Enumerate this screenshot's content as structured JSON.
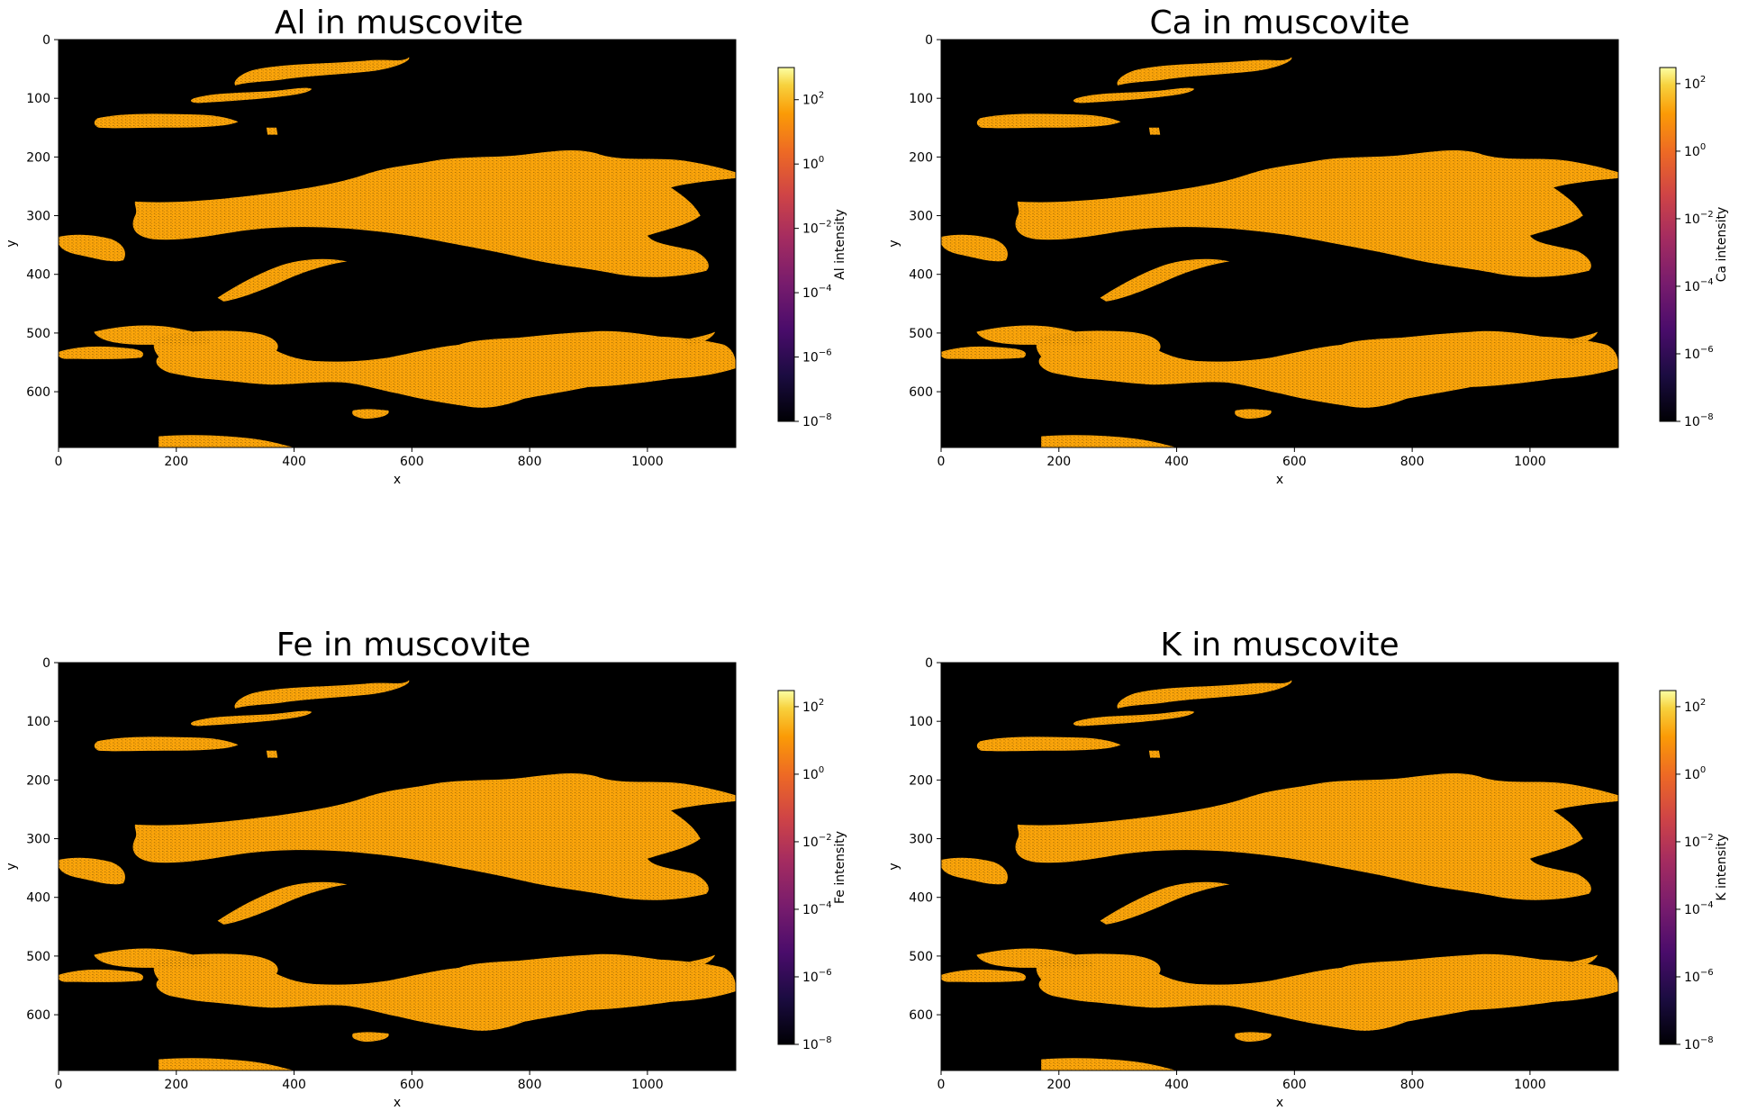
{
  "chart_data": [
    {
      "type": "heatmap",
      "title": "Al in muscovite",
      "xlabel": "x",
      "ylabel": "y",
      "xlim": [
        0,
        1150
      ],
      "ylim": [
        695,
        0
      ],
      "xticks": [
        "0",
        "200",
        "400",
        "600",
        "800",
        "1000"
      ],
      "yticks": [
        "0",
        "100",
        "200",
        "300",
        "400",
        "500",
        "600"
      ],
      "colorbar": {
        "label": "Al intensity",
        "scale": "log",
        "range": [
          1e-08,
          1000
        ],
        "ticks": [
          "10",
          "10",
          "10",
          "10",
          "10",
          "10"
        ],
        "exponents": [
          "−8",
          "−6",
          "−4",
          "−2",
          "0",
          "2"
        ]
      },
      "colormap": "inferno",
      "background_color": "#000000",
      "mineral_color": "#fca50a"
    },
    {
      "type": "heatmap",
      "title": "Ca in muscovite",
      "xlabel": "x",
      "ylabel": "y",
      "xlim": [
        0,
        1150
      ],
      "ylim": [
        695,
        0
      ],
      "xticks": [
        "0",
        "200",
        "400",
        "600",
        "800",
        "1000"
      ],
      "yticks": [
        "0",
        "100",
        "200",
        "300",
        "400",
        "500",
        "600"
      ],
      "colorbar": {
        "label": "Ca intensity",
        "scale": "log",
        "range": [
          1e-08,
          300
        ],
        "ticks": [
          "10",
          "10",
          "10",
          "10",
          "10",
          "10"
        ],
        "exponents": [
          "−8",
          "−6",
          "−4",
          "−2",
          "0",
          "2"
        ]
      },
      "colormap": "inferno",
      "background_color": "#000000",
      "mineral_color": "#fca50a"
    },
    {
      "type": "heatmap",
      "title": "Fe in muscovite",
      "xlabel": "x",
      "ylabel": "y",
      "xlim": [
        0,
        1150
      ],
      "ylim": [
        695,
        0
      ],
      "xticks": [
        "0",
        "200",
        "400",
        "600",
        "800",
        "1000"
      ],
      "yticks": [
        "0",
        "100",
        "200",
        "300",
        "400",
        "500",
        "600"
      ],
      "colorbar": {
        "label": "Fe intensity",
        "scale": "log",
        "range": [
          1e-08,
          300
        ],
        "ticks": [
          "10",
          "10",
          "10",
          "10",
          "10",
          "10"
        ],
        "exponents": [
          "−8",
          "−6",
          "−4",
          "−2",
          "0",
          "2"
        ]
      },
      "colormap": "inferno",
      "background_color": "#000000",
      "mineral_color": "#fca50a"
    },
    {
      "type": "heatmap",
      "title": "K in muscovite",
      "xlabel": "x",
      "ylabel": "y",
      "xlim": [
        0,
        1150
      ],
      "ylim": [
        695,
        0
      ],
      "xticks": [
        "0",
        "200",
        "400",
        "600",
        "800",
        "1000"
      ],
      "yticks": [
        "0",
        "100",
        "200",
        "300",
        "400",
        "500",
        "600"
      ],
      "colorbar": {
        "label": "K intensity",
        "scale": "log",
        "range": [
          1e-08,
          300
        ],
        "ticks": [
          "10",
          "10",
          "10",
          "10",
          "10",
          "10"
        ],
        "exponents": [
          "−8",
          "−6",
          "−4",
          "−2",
          "0",
          "2"
        ]
      },
      "colormap": "inferno",
      "background_color": "#000000",
      "mineral_color": "#fca50a"
    }
  ]
}
